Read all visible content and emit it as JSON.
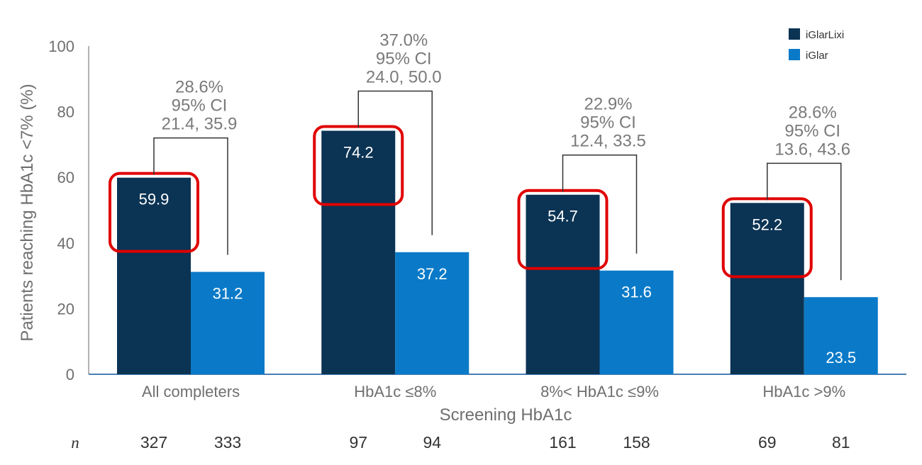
{
  "chart_data": {
    "type": "bar",
    "categories": [
      "All completers",
      "HbA1c ≤8%",
      "8%< HbA1c ≤9%",
      "HbA1c >9%"
    ],
    "series": [
      {
        "name": "iGlarLixi",
        "values": [
          59.9,
          74.2,
          54.7,
          52.2
        ],
        "color": "#0b3354",
        "value_labels": [
          "59.9",
          "74.2",
          "54.7",
          "52.2"
        ]
      },
      {
        "name": "iGlar",
        "values": [
          31.2,
          37.2,
          31.6,
          23.5
        ],
        "color": "#0a7ac8",
        "value_labels": [
          "31.2",
          "37.2",
          "31.6",
          "23.5"
        ]
      }
    ],
    "xlabel": "Screening HbA1c",
    "ylabel": "Patients reaching HbA1c <7% (%)",
    "ylim": [
      0,
      100
    ],
    "yticks": [
      "0",
      "20",
      "40",
      "60",
      "80",
      "100"
    ],
    "annotations": [
      {
        "lines": [
          "28.6%",
          "95% CI",
          "21.4, 35.9"
        ]
      },
      {
        "lines": [
          "37.0%",
          "95% CI",
          "24.0, 50.0"
        ]
      },
      {
        "lines": [
          "22.9%",
          "95% CI",
          "12.4, 33.5"
        ]
      },
      {
        "lines": [
          "28.6%",
          "95% CI",
          "13.6, 43.6"
        ]
      }
    ],
    "highlight_color": "#e00000",
    "grid": false,
    "legend_position": "top-right"
  },
  "n_row": {
    "title": "n",
    "values": [
      [
        "327",
        "333"
      ],
      [
        "97",
        "94"
      ],
      [
        "161",
        "158"
      ],
      [
        "69",
        "81"
      ]
    ]
  }
}
